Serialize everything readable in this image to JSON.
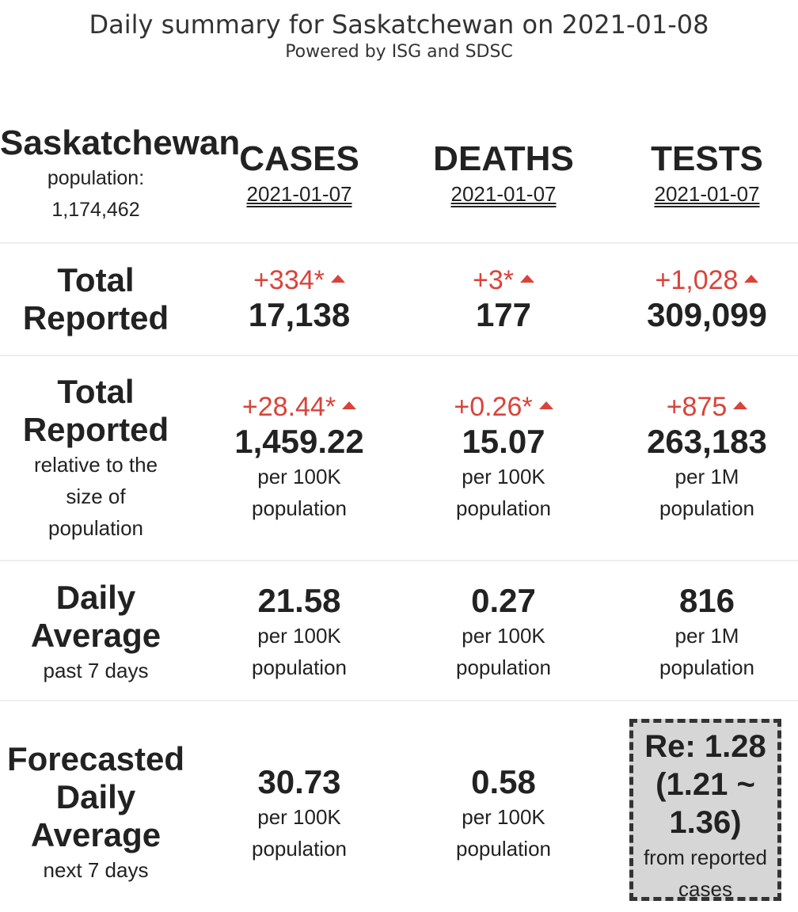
{
  "header": {
    "title": "Daily summary for Saskatchewan on 2021-01-08",
    "subtitle": "Powered by ISG and SDSC"
  },
  "region": {
    "name": "Saskatchewan",
    "population_label": "population:",
    "population_value": "1,174,462"
  },
  "columns": [
    {
      "label": "CASES",
      "date": "2021-01-07"
    },
    {
      "label": "DEATHS",
      "date": "2021-01-07"
    },
    {
      "label": "TESTS",
      "date": "2021-01-07"
    }
  ],
  "rows": {
    "total_reported": {
      "label_line1": "Total",
      "label_line2": "Reported",
      "cells": [
        {
          "delta": "+334*",
          "value": "17,138"
        },
        {
          "delta": "+3*",
          "value": "177"
        },
        {
          "delta": "+1,028",
          "value": "309,099"
        }
      ]
    },
    "total_relative": {
      "label_line1": "Total",
      "label_line2": "Reported",
      "sub1": "relative to the",
      "sub2": "size of",
      "sub3": "population",
      "cells": [
        {
          "delta": "+28.44*",
          "value": "1,459.22",
          "unit1": "per 100K",
          "unit2": "population"
        },
        {
          "delta": "+0.26*",
          "value": "15.07",
          "unit1": "per 100K",
          "unit2": "population"
        },
        {
          "delta": "+875",
          "value": "263,183",
          "unit1": "per 1M",
          "unit2": "population"
        }
      ]
    },
    "daily_average": {
      "label_line1": "Daily",
      "label_line2": "Average",
      "sub1": "past 7 days",
      "cells": [
        {
          "value": "21.58",
          "unit1": "per 100K",
          "unit2": "population"
        },
        {
          "value": "0.27",
          "unit1": "per 100K",
          "unit2": "population"
        },
        {
          "value": "816",
          "unit1": "per 1M",
          "unit2": "population"
        }
      ]
    },
    "forecast": {
      "label_line1": "Forecasted",
      "label_line2": "Daily",
      "label_line3": "Average",
      "sub1": "next 7 days",
      "cells": [
        {
          "value": "30.73",
          "unit1": "per 100K",
          "unit2": "population"
        },
        {
          "value": "0.58",
          "unit1": "per 100K",
          "unit2": "population"
        }
      ],
      "re": {
        "line1": "Re: 1.28",
        "line2": "(1.21 ~",
        "line3": "1.36)",
        "sub1": "from reported",
        "sub2": "cases"
      }
    }
  }
}
